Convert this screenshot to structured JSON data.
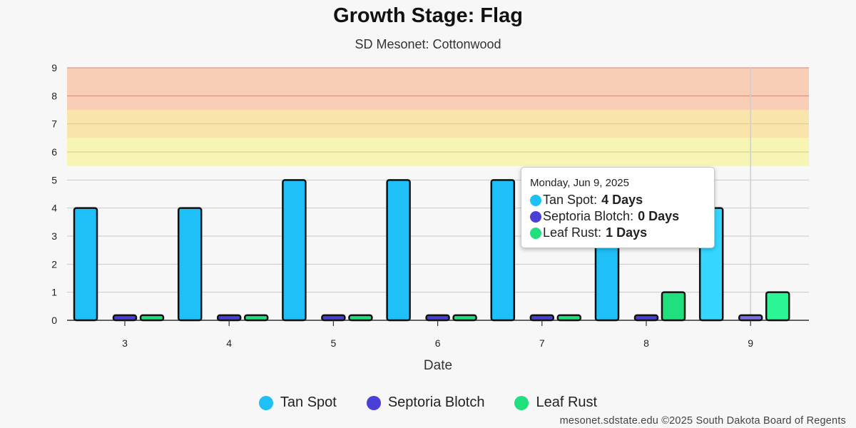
{
  "chart_data": {
    "type": "bar",
    "title": "Growth Stage: Flag",
    "subtitle": "SD Mesonet: Cottonwood",
    "xlabel": "Date",
    "ylabel": "",
    "categories": [
      "3",
      "4",
      "5",
      "6",
      "7",
      "8",
      "9"
    ],
    "ylim": [
      0,
      9
    ],
    "yticks": [
      0,
      1,
      2,
      3,
      4,
      5,
      6,
      7,
      8,
      9
    ],
    "grid": true,
    "risk_bands": [
      {
        "from": 5.5,
        "to": 6.5,
        "color": "#f7f5b4"
      },
      {
        "from": 6.5,
        "to": 7.5,
        "color": "#f9e5ab"
      },
      {
        "from": 7.5,
        "to": 9,
        "color": "#f9ceb6"
      }
    ],
    "series": [
      {
        "name": "Tan Spot",
        "color": "#1ec0f7",
        "values": [
          4,
          4,
          5,
          5,
          5,
          4,
          4
        ]
      },
      {
        "name": "Septoria Blotch",
        "color": "#4a3fd6",
        "values": [
          0,
          0,
          0,
          0,
          0,
          0,
          0
        ]
      },
      {
        "name": "Leaf Rust",
        "color": "#1fe07d",
        "values": [
          0,
          0,
          0,
          0,
          0,
          1,
          1
        ]
      }
    ],
    "legend_position": "bottom-center",
    "tooltip": {
      "category_index": 6,
      "date": "Monday, Jun 9, 2025",
      "rows": [
        {
          "name": "Tan Spot",
          "value": "4 Days",
          "color": "#1ec0f7"
        },
        {
          "name": "Septoria Blotch",
          "value": "0 Days",
          "color": "#4a3fd6"
        },
        {
          "name": "Leaf Rust",
          "value": "1 Days",
          "color": "#1fe07d"
        }
      ]
    }
  },
  "credit": "mesonet.sdstate.edu ©2025 South Dakota Board of Regents"
}
